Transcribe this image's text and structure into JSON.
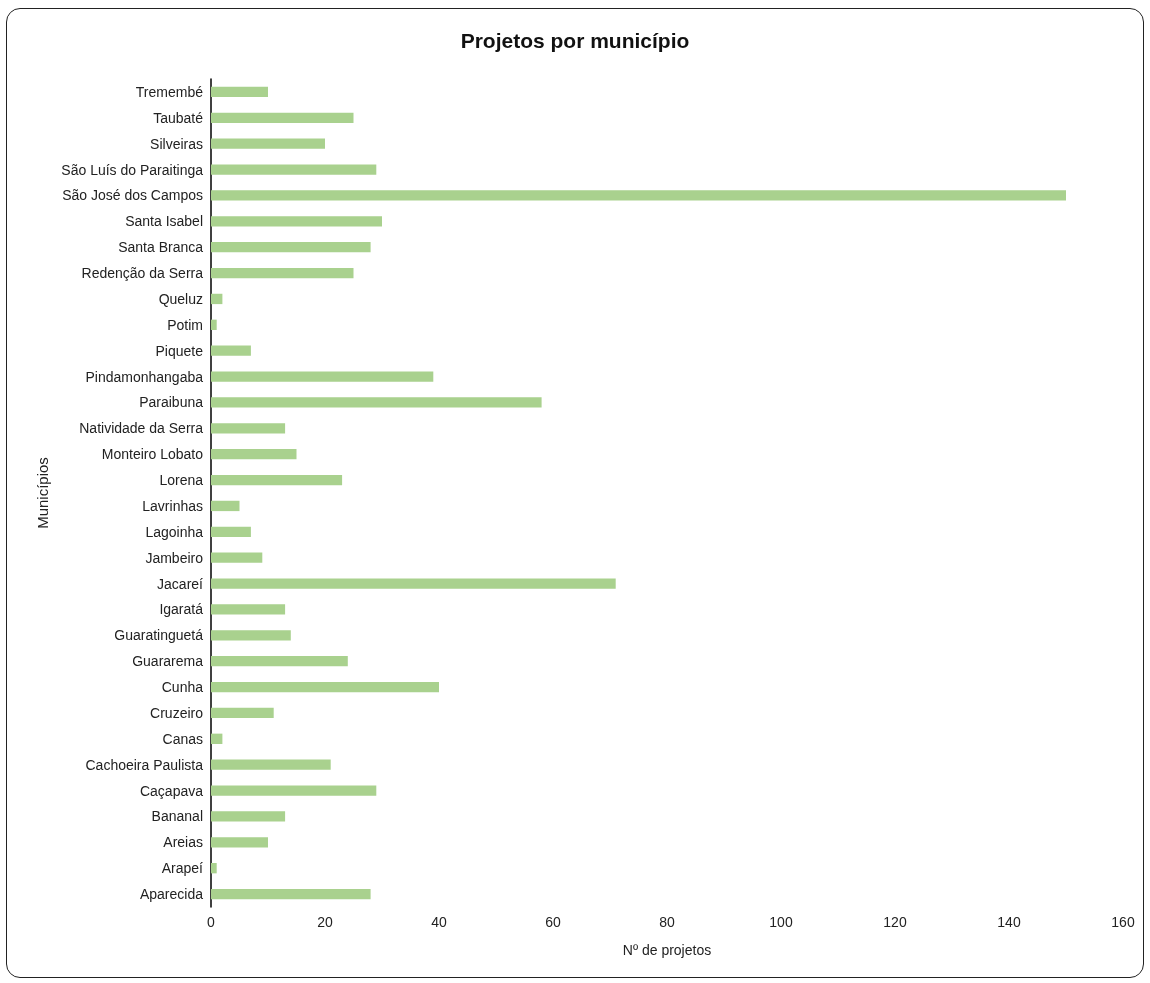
{
  "chart_data": {
    "type": "bar",
    "orientation": "horizontal",
    "title": "Projetos por município",
    "xlabel": "Nº de projetos",
    "ylabel": "Municípios",
    "categories": [
      "Tremembé",
      "Taubaté",
      "Silveiras",
      "São Luís do Paraitinga",
      "São José dos Campos",
      "Santa Isabel",
      "Santa Branca",
      "Redenção da Serra",
      "Queluz",
      "Potim",
      "Piquete",
      "Pindamonhangaba",
      "Paraibuna",
      "Natividade da Serra",
      "Monteiro Lobato",
      "Lorena",
      "Lavrinhas",
      "Lagoinha",
      "Jambeiro",
      "Jacareí",
      "Igaratá",
      "Guaratinguetá",
      "Guararema",
      "Cunha",
      "Cruzeiro",
      "Canas",
      "Cachoeira Paulista",
      "Caçapava",
      "Bananal",
      "Areias",
      "Arapeí",
      "Aparecida"
    ],
    "values": [
      10,
      25,
      20,
      29,
      150,
      30,
      28,
      25,
      2,
      1,
      7,
      39,
      58,
      13,
      15,
      23,
      5,
      7,
      9,
      71,
      13,
      14,
      24,
      40,
      11,
      2,
      21,
      29,
      13,
      10,
      1,
      28
    ],
    "color": "#a9d18e",
    "xlim": [
      0,
      160
    ],
    "xticks": [
      0,
      20,
      40,
      60,
      80,
      100,
      120,
      140,
      160
    ]
  }
}
